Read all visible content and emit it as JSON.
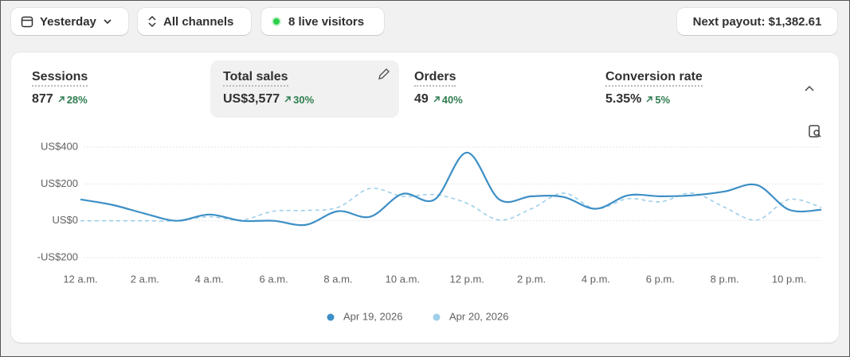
{
  "toolbar": {
    "date": "Yesterday",
    "channels": "All channels",
    "live": "8 live visitors",
    "payout": "Next payout: $1,382.61"
  },
  "metrics": [
    {
      "label": "Sessions",
      "value": "877",
      "change": "28%"
    },
    {
      "label": "Total sales",
      "value": "US$3,577",
      "change": "30%"
    },
    {
      "label": "Orders",
      "value": "49",
      "change": "40%"
    },
    {
      "label": "Conversion rate",
      "value": "5.35%",
      "change": "5%"
    }
  ],
  "chart_data": {
    "type": "line",
    "categories": [
      "12 a.m.",
      null,
      "2 a.m.",
      null,
      "4 a.m.",
      null,
      "6 a.m.",
      null,
      "8 a.m.",
      null,
      "10 a.m.",
      null,
      "12 p.m.",
      null,
      "2 p.m.",
      null,
      "4 p.m.",
      null,
      "6 p.m.",
      null,
      "8 p.m.",
      null,
      "10 p.m.",
      null
    ],
    "series": [
      {
        "name": "Apr 19, 2026",
        "color": "#3d8fc6",
        "values": [
          116,
          86,
          39,
          0,
          34,
          0,
          0,
          -22,
          52,
          22,
          146,
          116,
          370,
          116,
          133,
          129,
          65,
          138,
          133,
          138,
          159,
          194,
          60,
          60
        ]
      },
      {
        "name": "Apr 20, 2026",
        "color": "#9fcfe9",
        "dashed": true,
        "values": [
          0,
          0,
          0,
          0,
          22,
          4,
          52,
          56,
          73,
          176,
          133,
          142,
          95,
          4,
          65,
          150,
          65,
          120,
          103,
          150,
          73,
          4,
          116,
          73
        ]
      }
    ],
    "ylim": [
      -200,
      400
    ],
    "yticks": [
      {
        "value": -200,
        "label": "-US$200"
      },
      {
        "value": 0,
        "label": "US$0"
      },
      {
        "value": 200,
        "label": "US$200"
      },
      {
        "value": 400,
        "label": "US$400"
      }
    ],
    "grid": true
  }
}
